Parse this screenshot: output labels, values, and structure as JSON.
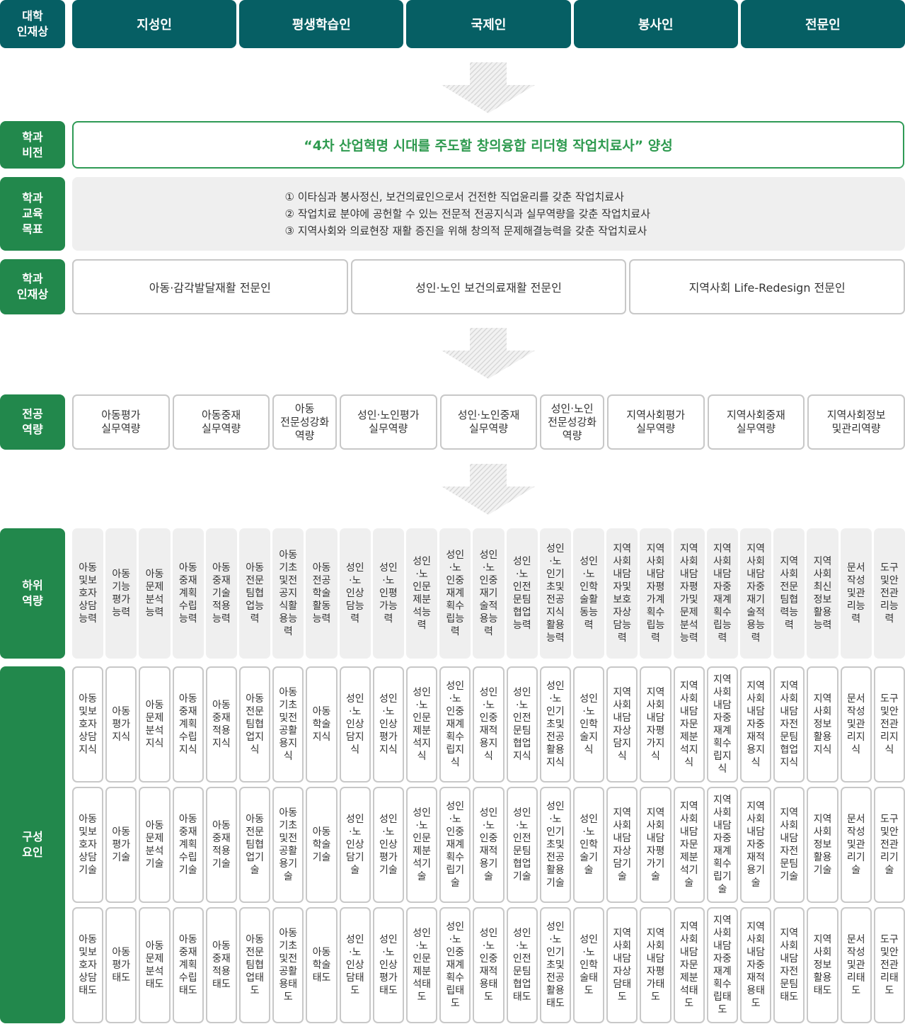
{
  "labels": {
    "univ": "대학\n인재상",
    "vision": "학과\n비전",
    "goals": "학과\n교육\n목표",
    "talent": "학과\n인재상",
    "major": "전공\n역량",
    "sub": "하위\n역량",
    "factors": "구성\n요인"
  },
  "univ_talents": [
    "지성인",
    "평생학습인",
    "국제인",
    "봉사인",
    "전문인"
  ],
  "vision": "“4차 산업혁명 시대를 주도할 창의융합 리더형 작업치료사” 양성",
  "goals": [
    "① 이타심과 봉사정신, 보건의료인으로서 건전한 직업윤리를 갖춘 작업치료사",
    "② 작업치료 분야에 공헌할 수 있는 전문적 전공지식과 실무역량을 갖춘 작업치료사",
    "③ 지역사회와 의료현장 재활 증진을 위해 창의적 문제해결능력을 갖춘 작업치료사"
  ],
  "dept_talents": [
    "아동·감각발달재활 전문인",
    "성인·노인 보건의료재활 전문인",
    "지역사회 Life-Redesign 전문인"
  ],
  "major_competencies": [
    "아동평가\n실무역량",
    "아동중재\n실무역량",
    "아동\n전문성강화\n역량",
    "성인·노인평가\n실무역량",
    "성인·노인중재\n실무역량",
    "성인·노인\n전문성강화\n역량",
    "지역사회평가\n실무역량",
    "지역사회중재\n실무역량",
    "지역사회정보\n및관리역량"
  ],
  "sub_competencies": [
    "아동및보호자상담능력",
    "아동기능평가능력",
    "아동문제분석능력",
    "아동중재계획수립능력",
    "아동중재기술적용능력",
    "아동전문팀협업능력",
    "아동기초및전공지식활용능력",
    "아동전공학술활동능력",
    "성인·노인상담능력",
    "성인·노인평가능력",
    "성인·노인문제분석능력",
    "성인·노인중재계획수립능력",
    "성인·노인중재기술적용능력",
    "성인·노인전문팀협업능력",
    "성인·노인기초및전공지식활용능력",
    "성인·노인학술활동능력",
    "지역사회내담자및보호자상담능력",
    "지역사회내담자평가계획수립능력",
    "지역사회내담자평가및문제분석능력",
    "지역사회내담자중재계획수립능력",
    "지역사회내담자중재기술적용능력",
    "지역사회전문팀협력능력",
    "지역사회최신정보활용능력",
    "문서작성및관리능력",
    "도구및안전관리능력"
  ],
  "knowledge": [
    "아동및보호자상담지식",
    "아동평가지식",
    "아동문제분석지식",
    "아동중재계획수립지식",
    "아동중재적용지식",
    "아동전문팀협업지식",
    "아동기초및전공활용지식",
    "아동학술지식",
    "성인·노인상담지식",
    "성인·노인상평가지식",
    "성인·노인문제분석지식",
    "성인·노인중재계획수립지식",
    "성인·노인중재적용지식",
    "성인·노인전문팀협업지식",
    "성인·노인기초및전공활용지식",
    "성인·노인학술지식",
    "지역사회내담자상담지식",
    "지역사회내담자평가지식",
    "지역사회내담자문제분석지식",
    "지역사회내담자중재계획수립지식",
    "지역사회내담자중재적용지식",
    "지역사회내담자전문팀협업지식",
    "지역사회정보활용지식",
    "문서작성및관리지식",
    "도구및안전관리지식"
  ],
  "skills": [
    "아동및보호자상담기술",
    "아동평가기술",
    "아동문제분석기술",
    "아동중재계획수립기술",
    "아동중재적용기술",
    "아동전문팀협업기술",
    "아동기초및전공활용기술",
    "아동학술기술",
    "성인·노인상담기술",
    "성인·노인상평가기술",
    "성인·노인문제분석기술",
    "성인·노인중재계획수립기술",
    "성인·노인중재적용기술",
    "성인·노인전문팀협업기술",
    "성인·노인기초및전공활용기술",
    "성인·노인학술기술",
    "지역사회내담자상담기술",
    "지역사회내담자평가기술",
    "지역사회내담자문제분석기술",
    "지역사회내담자중재계획수립기술",
    "지역사회내담자중재적용기술",
    "지역사회내담자전문팀기술",
    "지역사회정보활용기술",
    "문서작성및관리기술",
    "도구및안전관리기술"
  ],
  "attitudes": [
    "아동및보호자상담태도",
    "아동평가태도",
    "아동문제분석태도",
    "아동중재계획수립태도",
    "아동중재적용태도",
    "아동전문팀협업태도",
    "아동기초및전공활용태도",
    "아동학술태도",
    "성인·노인상담태도",
    "성인·노인상평가태도",
    "성인·노인문제분석태도",
    "성인·노인중재계획수립태도",
    "성인·노인중재적용태도",
    "성인·노인전문팀협업태도",
    "성인·노인기초및전공활용태도",
    "성인·노인학술태도",
    "지역사회내담자상담태도",
    "지역사회내담자평가태도",
    "지역사회내담자문제분석태도",
    "지역사회내담자중재계획수립태도",
    "지역사회내담자중재적용태도",
    "지역사회내담자전문팀태도",
    "지역사회정보활용태도",
    "문서작성및관리태도",
    "도구및안전관리태도"
  ],
  "colors": {
    "teal": "#065f64",
    "green": "#22884c",
    "vision_text": "#2e9a4f",
    "panel_gray": "#efefef"
  },
  "icons": {
    "flow_arrow": "hatched-down-arrow-icon"
  }
}
